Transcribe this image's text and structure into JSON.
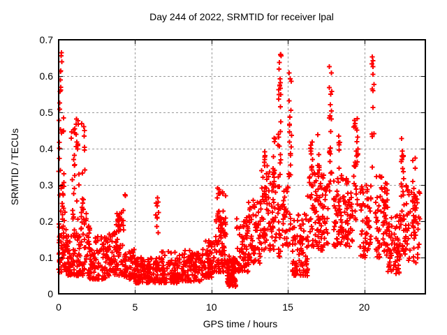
{
  "chart_data": {
    "type": "scatter",
    "title": "Day 244 of 2022, SRMTID for receiver lpal",
    "xlabel": "GPS time / hours",
    "ylabel": "SRMTID / TECUs",
    "xlim": [
      0,
      24
    ],
    "ylim": [
      0,
      0.7
    ],
    "xticks": {
      "values": [
        0,
        5,
        10,
        15,
        20
      ],
      "labels": [
        "0",
        "5",
        "10",
        "15",
        "20"
      ]
    },
    "yticks": {
      "values": [
        0,
        0.1,
        0.2,
        0.3,
        0.4,
        0.5,
        0.6,
        0.7
      ],
      "labels": [
        "0",
        "0.1",
        "0.2",
        "0.3",
        "0.4",
        "0.5",
        "0.6",
        "0.7"
      ]
    },
    "grid": {
      "visible": true,
      "style": "dashed",
      "color": "#999999"
    },
    "axis_color": "#000000",
    "background_color": "#ffffff",
    "legend": "none",
    "series_name": "SRMTID",
    "marker": {
      "shape": "plus",
      "color": "#ff0000",
      "size": 7,
      "stroke": 2
    },
    "seed": 2022244,
    "scatter_profile": {
      "note": "Envelope read from plot. bands: {t0,t1,n,lo,hi,bias} uniform in time, value=lo+(hi-lo)*u^bias (bias>1 = denser near lo). columns: {t,w,n,lo,hi} vertical spike clusters, uniform.",
      "bands": [
        {
          "t0": 0.0,
          "t1": 0.5,
          "n": 55,
          "lo": 0.06,
          "hi": 0.25,
          "bias": 2.0
        },
        {
          "t0": 0.0,
          "t1": 0.35,
          "n": 22,
          "lo": 0.25,
          "hi": 0.55,
          "bias": 1.2
        },
        {
          "t0": 0.5,
          "t1": 1.0,
          "n": 45,
          "lo": 0.05,
          "hi": 0.16,
          "bias": 1.8
        },
        {
          "t0": 0.8,
          "t1": 1.35,
          "n": 26,
          "lo": 0.16,
          "hi": 0.5,
          "bias": 1.5
        },
        {
          "t0": 1.0,
          "t1": 2.05,
          "n": 80,
          "lo": 0.05,
          "hi": 0.19,
          "bias": 1.8
        },
        {
          "t0": 1.45,
          "t1": 1.8,
          "n": 14,
          "lo": 0.17,
          "hi": 0.28,
          "bias": 1.0
        },
        {
          "t0": 2.0,
          "t1": 3.1,
          "n": 85,
          "lo": 0.04,
          "hi": 0.16,
          "bias": 1.8
        },
        {
          "t0": 3.1,
          "t1": 3.65,
          "n": 50,
          "lo": 0.05,
          "hi": 0.17,
          "bias": 1.6
        },
        {
          "t0": 3.65,
          "t1": 4.3,
          "n": 55,
          "lo": 0.05,
          "hi": 0.23,
          "bias": 1.6
        },
        {
          "t0": 4.3,
          "t1": 5.0,
          "n": 55,
          "lo": 0.04,
          "hi": 0.13,
          "bias": 1.6
        },
        {
          "t0": 5.0,
          "t1": 6.6,
          "n": 130,
          "lo": 0.03,
          "hi": 0.1,
          "bias": 1.5
        },
        {
          "t0": 6.6,
          "t1": 8.0,
          "n": 100,
          "lo": 0.03,
          "hi": 0.12,
          "bias": 1.5
        },
        {
          "t0": 8.0,
          "t1": 9.4,
          "n": 100,
          "lo": 0.035,
          "hi": 0.12,
          "bias": 1.5
        },
        {
          "t0": 9.4,
          "t1": 10.25,
          "n": 70,
          "lo": 0.045,
          "hi": 0.15,
          "bias": 1.5
        },
        {
          "t0": 10.25,
          "t1": 11.0,
          "n": 70,
          "lo": 0.06,
          "hi": 0.22,
          "bias": 1.5
        },
        {
          "t0": 10.35,
          "t1": 10.95,
          "n": 18,
          "lo": 0.18,
          "hi": 0.3,
          "bias": 1.0
        },
        {
          "t0": 11.0,
          "t1": 11.6,
          "n": 85,
          "lo": 0.02,
          "hi": 0.11,
          "bias": 1.3
        },
        {
          "t0": 11.6,
          "t1": 12.4,
          "n": 70,
          "lo": 0.06,
          "hi": 0.21,
          "bias": 1.4
        },
        {
          "t0": 12.4,
          "t1": 13.25,
          "n": 70,
          "lo": 0.08,
          "hi": 0.26,
          "bias": 1.4
        },
        {
          "t0": 13.25,
          "t1": 14.25,
          "n": 80,
          "lo": 0.12,
          "hi": 0.34,
          "bias": 1.3
        },
        {
          "t0": 14.6,
          "t1": 15.05,
          "n": 30,
          "lo": 0.13,
          "hi": 0.3,
          "bias": 1.3
        },
        {
          "t0": 15.3,
          "t1": 16.3,
          "n": 85,
          "lo": 0.05,
          "hi": 0.22,
          "bias": 1.5
        },
        {
          "t0": 16.3,
          "t1": 17.35,
          "n": 85,
          "lo": 0.12,
          "hi": 0.35,
          "bias": 1.2
        },
        {
          "t0": 17.35,
          "t1": 17.65,
          "n": 22,
          "lo": 0.13,
          "hi": 0.3,
          "bias": 1.2
        },
        {
          "t0": 18.0,
          "t1": 18.65,
          "n": 55,
          "lo": 0.13,
          "hi": 0.33,
          "bias": 1.2
        },
        {
          "t0": 18.65,
          "t1": 19.25,
          "n": 48,
          "lo": 0.13,
          "hi": 0.32,
          "bias": 1.2
        },
        {
          "t0": 19.7,
          "t1": 20.45,
          "n": 60,
          "lo": 0.1,
          "hi": 0.3,
          "bias": 1.3
        },
        {
          "t0": 20.7,
          "t1": 21.55,
          "n": 75,
          "lo": 0.1,
          "hi": 0.33,
          "bias": 1.2
        },
        {
          "t0": 21.55,
          "t1": 22.35,
          "n": 65,
          "lo": 0.055,
          "hi": 0.22,
          "bias": 1.4
        },
        {
          "t0": 22.35,
          "t1": 22.75,
          "n": 25,
          "lo": 0.1,
          "hi": 0.26,
          "bias": 1.2
        },
        {
          "t0": 22.75,
          "t1": 23.65,
          "n": 55,
          "lo": 0.08,
          "hi": 0.3,
          "bias": 1.3
        }
      ],
      "columns": [
        {
          "t": 0.12,
          "w": 0.18,
          "n": 9,
          "lo": 0.55,
          "hi": 0.685
        },
        {
          "t": 1.15,
          "w": 0.25,
          "n": 8,
          "lo": 0.38,
          "hi": 0.5
        },
        {
          "t": 1.62,
          "w": 0.22,
          "n": 9,
          "lo": 0.33,
          "hi": 0.47
        },
        {
          "t": 3.9,
          "w": 0.35,
          "n": 10,
          "lo": 0.17,
          "hi": 0.235
        },
        {
          "t": 4.35,
          "w": 0.06,
          "n": 2,
          "lo": 0.255,
          "hi": 0.275
        },
        {
          "t": 6.45,
          "w": 0.25,
          "n": 10,
          "lo": 0.11,
          "hi": 0.28
        },
        {
          "t": 13.55,
          "w": 0.2,
          "n": 12,
          "lo": 0.25,
          "hi": 0.4
        },
        {
          "t": 14.1,
          "w": 0.15,
          "n": 8,
          "lo": 0.3,
          "hi": 0.45
        },
        {
          "t": 14.45,
          "w": 0.22,
          "n": 34,
          "lo": 0.2,
          "hi": 0.672
        },
        {
          "t": 14.45,
          "w": 0.15,
          "n": 10,
          "lo": 0.07,
          "hi": 0.2
        },
        {
          "t": 15.15,
          "w": 0.18,
          "n": 20,
          "lo": 0.28,
          "hi": 0.62
        },
        {
          "t": 15.15,
          "w": 0.1,
          "n": 6,
          "lo": 0.1,
          "hi": 0.28
        },
        {
          "t": 16.55,
          "w": 0.15,
          "n": 10,
          "lo": 0.3,
          "hi": 0.42
        },
        {
          "t": 17.0,
          "w": 0.12,
          "n": 8,
          "lo": 0.33,
          "hi": 0.45
        },
        {
          "t": 17.8,
          "w": 0.2,
          "n": 22,
          "lo": 0.28,
          "hi": 0.63
        },
        {
          "t": 18.35,
          "w": 0.1,
          "n": 6,
          "lo": 0.33,
          "hi": 0.45
        },
        {
          "t": 19.45,
          "w": 0.3,
          "n": 30,
          "lo": 0.2,
          "hi": 0.5
        },
        {
          "t": 20.57,
          "w": 0.15,
          "n": 13,
          "lo": 0.33,
          "hi": 0.69
        },
        {
          "t": 22.5,
          "w": 0.18,
          "n": 16,
          "lo": 0.25,
          "hi": 0.44
        },
        {
          "t": 23.25,
          "w": 0.2,
          "n": 10,
          "lo": 0.22,
          "hi": 0.4
        }
      ]
    }
  }
}
